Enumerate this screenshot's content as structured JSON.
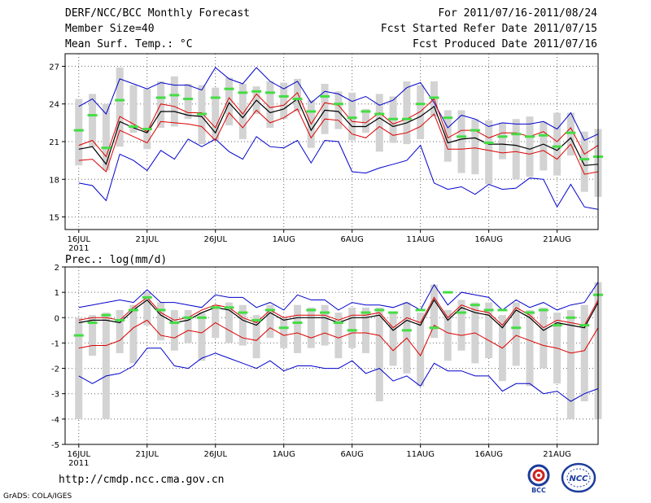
{
  "header": {
    "title": "DERF/NCC/BCC Monthly Forecast",
    "member_size": "Member Size=40",
    "variable": "Mean Surf. Temp.: °C",
    "forecast_range": "For 2011/07/16-2011/08/24",
    "start_date": "Fcst Started Refer Date 2011/07/15",
    "produced_date": "Fcst Produced Date 2011/07/16"
  },
  "footer": {
    "url": "http://cmdp.ncc.cma.gov.cn",
    "credit": "GrADS: COLA/IGES",
    "logo_bcc": "BCC",
    "logo_ncc": "NCC"
  },
  "colors": {
    "box": "#d3d3d3",
    "member": "#44dd44",
    "mean": "#000000",
    "quartile": "#dd0000",
    "extreme": "#0000cc",
    "grid": "#666666"
  },
  "chart_data": [
    {
      "type": "line",
      "title": "Mean Surf. Temp.: °C",
      "x_label_days": [
        1,
        6,
        11,
        16,
        21,
        26,
        31,
        36
      ],
      "x_tick_labels": [
        "16JUL",
        "21JUL",
        "26JUL",
        "1AUG",
        "6AUG",
        "11AUG",
        "16AUG",
        "21AUG"
      ],
      "x_sub_label": "2011",
      "x_range": [
        0,
        39
      ],
      "ylim": [
        14,
        28
      ],
      "yticks": [
        15,
        18,
        21,
        24,
        27
      ],
      "days": [
        1,
        2,
        3,
        4,
        5,
        6,
        7,
        8,
        9,
        10,
        11,
        12,
        13,
        14,
        15,
        16,
        17,
        18,
        19,
        20,
        21,
        22,
        23,
        24,
        25,
        26,
        27,
        28,
        29,
        30,
        31,
        32,
        33,
        34,
        35,
        36,
        37,
        38,
        39
      ],
      "series": [
        {
          "name": "max",
          "values": [
            23.8,
            24.4,
            23.2,
            26.0,
            25.6,
            25.2,
            25.7,
            25.5,
            25.5,
            25.1,
            26.9,
            26.0,
            25.6,
            26.9,
            25.8,
            25.2,
            25.8,
            24.1,
            25.0,
            24.8,
            24.2,
            24.6,
            23.9,
            24.3,
            25.3,
            25.7,
            24.1,
            22.1,
            23.1,
            22.8,
            22.2,
            22.5,
            22.4,
            22.4,
            22.6,
            22.0,
            23.3,
            21.1,
            21.6
          ]
        },
        {
          "name": "upper_quartile",
          "values": [
            20.7,
            21.1,
            19.8,
            23.0,
            22.4,
            21.8,
            24.0,
            23.8,
            23.3,
            23.3,
            22.1,
            24.5,
            23.2,
            24.8,
            23.7,
            23.9,
            24.9,
            22.4,
            24.1,
            23.9,
            22.6,
            22.5,
            23.3,
            22.4,
            22.8,
            23.4,
            24.4,
            21.3,
            21.9,
            21.9,
            21.3,
            21.7,
            21.7,
            21.4,
            21.8,
            21.0,
            22.1,
            20.0,
            20.7
          ]
        },
        {
          "name": "ensemble_mean",
          "values": [
            20.4,
            20.6,
            19.2,
            22.6,
            22.1,
            21.7,
            23.4,
            23.4,
            23.1,
            23.0,
            21.7,
            24.1,
            22.9,
            24.3,
            23.3,
            23.6,
            24.4,
            21.9,
            23.5,
            23.4,
            22.2,
            22.2,
            22.9,
            22.2,
            22.5,
            23.0,
            23.8,
            20.9,
            21.2,
            21.3,
            20.8,
            20.8,
            20.7,
            20.4,
            20.8,
            20.3,
            21.3,
            19.1,
            19.2
          ]
        },
        {
          "name": "lower_quartile",
          "values": [
            19.5,
            19.6,
            18.6,
            21.9,
            21.4,
            20.9,
            22.6,
            22.5,
            22.4,
            22.2,
            21.1,
            23.3,
            22.1,
            23.5,
            22.5,
            22.9,
            23.6,
            21.3,
            22.8,
            22.7,
            21.6,
            21.3,
            22.2,
            21.5,
            21.7,
            22.2,
            23.2,
            20.4,
            20.4,
            20.5,
            20.3,
            20.1,
            20.2,
            20.0,
            20.3,
            19.6,
            20.8,
            18.4,
            18.6
          ]
        },
        {
          "name": "min",
          "values": [
            17.7,
            17.5,
            16.3,
            20.0,
            19.5,
            18.7,
            20.3,
            19.6,
            21.2,
            20.6,
            21.2,
            20.2,
            19.6,
            21.4,
            20.6,
            20.5,
            21.1,
            19.3,
            21.1,
            21.0,
            18.6,
            18.5,
            18.9,
            19.2,
            19.5,
            20.7,
            17.7,
            17.2,
            17.4,
            16.8,
            17.6,
            17.2,
            17.3,
            18.1,
            18.0,
            15.8,
            17.6,
            15.8,
            15.6
          ]
        },
        {
          "name": "member_mark",
          "values": [
            21.9,
            23.1,
            20.5,
            24.3,
            22.2,
            22.0,
            24.5,
            24.7,
            24.4,
            23.2,
            24.5,
            25.2,
            24.9,
            25.0,
            24.9,
            24.6,
            24.4,
            23.4,
            24.6,
            24.0,
            22.9,
            23.4,
            23.2,
            22.8,
            22.8,
            24.0,
            24.5,
            22.9,
            21.4,
            21.9,
            20.9,
            21.4,
            21.6,
            21.4,
            21.5,
            20.6,
            21.7,
            19.6,
            19.8
          ]
        },
        {
          "name": "box_top",
          "values": [
            24.4,
            24.8,
            24.0,
            26.9,
            25.5,
            25.2,
            25.8,
            26.2,
            25.6,
            25.5,
            25.3,
            26.1,
            25.6,
            25.4,
            25.8,
            25.7,
            26.0,
            24.3,
            25.6,
            25.0,
            24.9,
            23.6,
            24.8,
            24.6,
            25.8,
            25.5,
            25.8,
            23.5,
            23.5,
            22.8,
            22.7,
            22.5,
            22.8,
            23.0,
            22.6,
            23.3,
            23.3,
            21.8,
            22.0
          ]
        },
        {
          "name": "box_bottom",
          "values": [
            19.1,
            20.6,
            18.7,
            20.6,
            21.7,
            20.4,
            22.1,
            22.2,
            22.8,
            20.8,
            21.1,
            22.3,
            21.2,
            23.2,
            22.1,
            22.8,
            23.4,
            20.5,
            21.6,
            22.0,
            21.1,
            21.7,
            20.2,
            20.9,
            20.8,
            21.2,
            23.0,
            19.4,
            18.5,
            18.4,
            17.6,
            19.6,
            18.0,
            18.2,
            18.7,
            18.3,
            19.9,
            17.0,
            16.6
          ]
        }
      ]
    },
    {
      "type": "line",
      "title": "Prec.: log(mm/d)",
      "x_label_days": [
        1,
        6,
        11,
        16,
        21,
        26,
        31,
        36
      ],
      "x_tick_labels": [
        "16JUL",
        "21JUL",
        "26JUL",
        "1AUG",
        "6AUG",
        "11AUG",
        "16AUG",
        "21AUG"
      ],
      "x_sub_label": "2011",
      "x_range": [
        0,
        39
      ],
      "ylim": [
        -5,
        2
      ],
      "yticks": [
        -5,
        -4,
        -3,
        -2,
        -1,
        0,
        1,
        2
      ],
      "days": [
        1,
        2,
        3,
        4,
        5,
        6,
        7,
        8,
        9,
        10,
        11,
        12,
        13,
        14,
        15,
        16,
        17,
        18,
        19,
        20,
        21,
        22,
        23,
        24,
        25,
        26,
        27,
        28,
        29,
        30,
        31,
        32,
        33,
        34,
        35,
        36,
        37,
        38,
        39
      ],
      "series": [
        {
          "name": "max",
          "values": [
            0.4,
            0.5,
            0.6,
            0.7,
            0.6,
            1.1,
            0.6,
            0.6,
            0.5,
            0.4,
            0.9,
            0.8,
            0.8,
            0.4,
            0.6,
            0.3,
            0.9,
            0.7,
            0.7,
            0.3,
            0.6,
            0.5,
            0.5,
            0.4,
            0.6,
            0.3,
            1.3,
            0.5,
            1.0,
            0.9,
            0.8,
            0.3,
            0.7,
            0.4,
            0.6,
            0.3,
            0.5,
            0.6,
            1.4
          ]
        },
        {
          "name": "upper_quartile",
          "values": [
            -0.1,
            0.0,
            0.0,
            -0.1,
            0.4,
            0.8,
            0.2,
            -0.1,
            0.0,
            0.3,
            0.5,
            0.4,
            0.0,
            -0.2,
            0.3,
            0.0,
            0.1,
            0.1,
            0.1,
            -0.1,
            0.1,
            0.1,
            0.2,
            -0.4,
            0.0,
            -0.2,
            0.8,
            0.0,
            0.5,
            0.3,
            0.2,
            -0.3,
            0.4,
            0.1,
            -0.4,
            -0.1,
            -0.2,
            -0.3,
            0.7
          ]
        },
        {
          "name": "ensemble_mean",
          "values": [
            -0.2,
            -0.1,
            -0.1,
            -0.2,
            0.3,
            0.7,
            0.1,
            -0.2,
            -0.1,
            0.2,
            0.4,
            0.3,
            -0.1,
            -0.3,
            0.2,
            -0.1,
            0.0,
            0.0,
            0.0,
            -0.2,
            0.0,
            0.0,
            0.1,
            -0.5,
            -0.1,
            -0.3,
            0.7,
            -0.1,
            0.4,
            0.2,
            0.1,
            -0.4,
            0.3,
            0.0,
            -0.5,
            -0.2,
            -0.3,
            -0.4,
            0.6
          ]
        },
        {
          "name": "lower_quartile",
          "values": [
            -1.2,
            -1.1,
            -1.1,
            -0.9,
            -0.4,
            -0.1,
            -0.7,
            -0.8,
            -0.5,
            -0.6,
            -0.2,
            -0.5,
            -0.8,
            -0.9,
            -0.4,
            -0.7,
            -0.6,
            -0.8,
            -0.6,
            -0.8,
            -0.6,
            -0.6,
            -0.7,
            -1.3,
            -0.8,
            -1.5,
            -0.3,
            -0.6,
            -0.7,
            -0.6,
            -0.9,
            -1.2,
            -0.7,
            -0.9,
            -1.1,
            -1.2,
            -1.4,
            -1.3,
            -0.4
          ]
        },
        {
          "name": "min",
          "values": [
            -2.3,
            -2.6,
            -2.3,
            -2.2,
            -1.9,
            -1.2,
            -1.2,
            -1.9,
            -2.0,
            -1.6,
            -1.4,
            -1.6,
            -1.8,
            -2.0,
            -1.7,
            -2.1,
            -1.9,
            -1.9,
            -2.0,
            -2.0,
            -1.7,
            -2.2,
            -2.0,
            -2.5,
            -2.3,
            -2.7,
            -1.8,
            -2.1,
            -2.1,
            -2.3,
            -2.3,
            -2.9,
            -2.6,
            -2.6,
            -3.0,
            -2.9,
            -3.3,
            -3.0,
            -2.8
          ]
        },
        {
          "name": "member_mark",
          "values": [
            -0.7,
            -0.2,
            0.1,
            -0.1,
            0.3,
            0.8,
            0.3,
            -0.2,
            0.0,
            0.0,
            0.4,
            0.4,
            0.2,
            -0.1,
            0.3,
            -0.4,
            -0.2,
            0.3,
            0.2,
            -0.2,
            -0.5,
            0.2,
            0.3,
            0.2,
            -0.5,
            0.3,
            -0.4,
            1.0,
            0.2,
            0.5,
            0.3,
            0.3,
            -0.4,
            0.2,
            0.3,
            -0.3,
            0.0,
            -0.3,
            0.9
          ]
        },
        {
          "name": "box_top",
          "values": [
            0.0,
            0.1,
            0.2,
            0.3,
            0.5,
            1.0,
            0.6,
            0.3,
            0.3,
            0.2,
            0.5,
            0.6,
            0.5,
            0.1,
            0.5,
            0.0,
            0.5,
            0.4,
            0.5,
            0.2,
            0.4,
            0.4,
            0.4,
            0.2,
            0.6,
            0.2,
            1.3,
            0.3,
            0.7,
            0.6,
            0.6,
            0.1,
            0.6,
            0.3,
            0.4,
            0.2,
            0.3,
            0.5,
            1.4
          ]
        },
        {
          "name": "box_bottom",
          "values": [
            -4.0,
            -1.5,
            -4.0,
            -1.4,
            -1.8,
            -0.3,
            -0.9,
            -1.3,
            -1.0,
            -1.7,
            -0.8,
            -1.0,
            -1.1,
            -1.6,
            -0.8,
            -1.2,
            -1.4,
            -1.2,
            -1.1,
            -1.6,
            -1.2,
            -1.4,
            -3.3,
            -1.9,
            -2.2,
            -2.7,
            -0.8,
            -1.7,
            -1.3,
            -1.8,
            -1.6,
            -2.5,
            -1.9,
            -2.7,
            -2.0,
            -2.6,
            -4.0,
            -3.3,
            -4.0
          ]
        }
      ]
    }
  ]
}
